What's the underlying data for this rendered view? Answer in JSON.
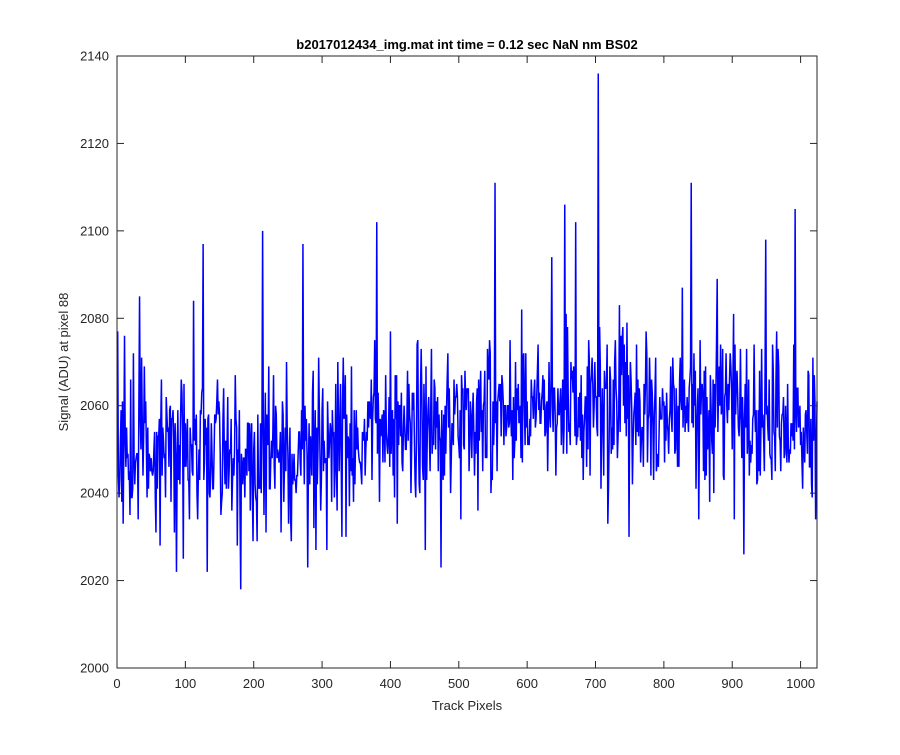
{
  "chart_data": {
    "type": "line",
    "title": "b2017012434_img.mat int time = 0.12 sec  NaN nm BS02",
    "xlabel": "Track Pixels",
    "ylabel": "Signal (ADU) at pixel 88",
    "xlim": [
      0,
      1024
    ],
    "ylim": [
      2000,
      2140
    ],
    "xticks": [
      0,
      100,
      200,
      300,
      400,
      500,
      600,
      700,
      800,
      900,
      1000
    ],
    "yticks": [
      2000,
      2020,
      2040,
      2060,
      2080,
      2100,
      2120,
      2140
    ],
    "grid": false,
    "legend": "none",
    "series_color": "#0000ff",
    "series": [
      {
        "base_level": [
          [
            0,
            2050
          ],
          [
            100,
            2049
          ],
          [
            200,
            2050
          ],
          [
            300,
            2052
          ],
          [
            400,
            2055
          ],
          [
            500,
            2056
          ],
          [
            600,
            2058
          ],
          [
            700,
            2061
          ],
          [
            800,
            2060
          ],
          [
            900,
            2057
          ],
          [
            1000,
            2055
          ],
          [
            1024,
            2054
          ]
        ],
        "noise_std": 9,
        "highlights": [
          {
            "x": 1,
            "y": 2077
          },
          {
            "x": 7,
            "y": 2038
          },
          {
            "x": 11,
            "y": 2076
          },
          {
            "x": 33,
            "y": 2085
          },
          {
            "x": 57,
            "y": 2031
          },
          {
            "x": 63,
            "y": 2028
          },
          {
            "x": 97,
            "y": 2025
          },
          {
            "x": 112,
            "y": 2084
          },
          {
            "x": 126,
            "y": 2097
          },
          {
            "x": 132,
            "y": 2022
          },
          {
            "x": 181,
            "y": 2018
          },
          {
            "x": 213,
            "y": 2100
          },
          {
            "x": 255,
            "y": 2029
          },
          {
            "x": 272,
            "y": 2097
          },
          {
            "x": 279,
            "y": 2023
          },
          {
            "x": 335,
            "y": 2030
          },
          {
            "x": 380,
            "y": 2102
          },
          {
            "x": 451,
            "y": 2027
          },
          {
            "x": 474,
            "y": 2023
          },
          {
            "x": 553,
            "y": 2111
          },
          {
            "x": 592,
            "y": 2082
          },
          {
            "x": 636,
            "y": 2094
          },
          {
            "x": 655,
            "y": 2106
          },
          {
            "x": 671,
            "y": 2102
          },
          {
            "x": 704,
            "y": 2136
          },
          {
            "x": 749,
            "y": 2030
          },
          {
            "x": 840,
            "y": 2111
          },
          {
            "x": 878,
            "y": 2089
          },
          {
            "x": 917,
            "y": 2026
          },
          {
            "x": 949,
            "y": 2098
          },
          {
            "x": 992,
            "y": 2105
          },
          {
            "x": 1022,
            "y": 2034
          }
        ]
      }
    ]
  }
}
